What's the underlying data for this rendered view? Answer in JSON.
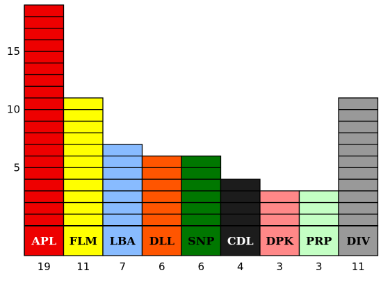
{
  "chart_data": {
    "type": "bar",
    "title": "",
    "xlabel": "",
    "ylabel": "",
    "ylim": [
      0,
      19
    ],
    "yticks": [
      5,
      10,
      15
    ],
    "grid": false,
    "legend": "none",
    "categories": [
      "APL",
      "FLM",
      "LBA",
      "DLL",
      "SNP",
      "CDL",
      "DPK",
      "PRP",
      "DIV"
    ],
    "values": [
      19,
      11,
      7,
      6,
      6,
      4,
      3,
      3,
      11
    ],
    "value_labels": [
      "19",
      "11",
      "7",
      "6",
      "6",
      "4",
      "3",
      "3",
      "11"
    ],
    "colors": [
      "#ee0000",
      "#ffff00",
      "#88bbff",
      "#ff5500",
      "#007700",
      "#1c1c1c",
      "#ff8888",
      "#c4ffc4",
      "#999999"
    ],
    "label_colors": [
      "#ffffff",
      "#000000",
      "#000000",
      "#000000",
      "#000000",
      "#ffffff",
      "#000000",
      "#000000",
      "#000000"
    ],
    "style": "stacked-unit-blocks"
  }
}
